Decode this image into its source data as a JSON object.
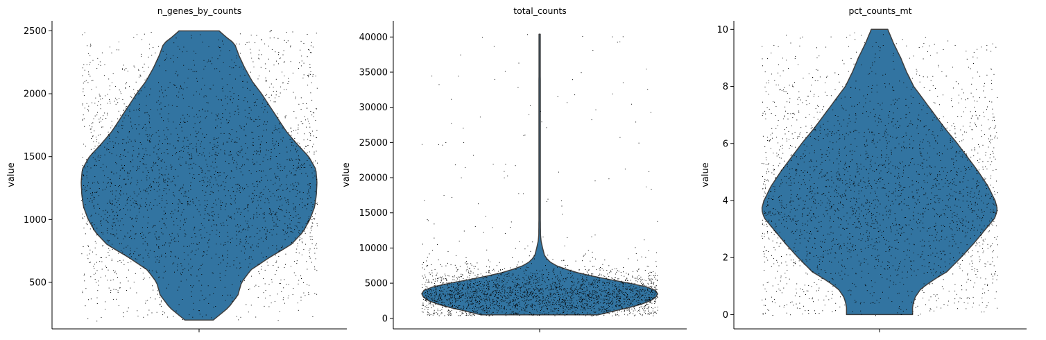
{
  "colors": {
    "violin_fill": "#3274a1",
    "violin_edge": "#3f3f3f",
    "points": "#000000"
  },
  "chart_data": [
    {
      "type": "violin",
      "title": "n_genes_by_counts",
      "xlabel": "",
      "ylabel": "value",
      "ylim": [
        130,
        2580
      ],
      "yticks": [
        500,
        1000,
        1500,
        2000,
        2500
      ],
      "data_range": [
        200,
        2500
      ],
      "density_profile": [
        [
          200,
          0.12
        ],
        [
          300,
          0.25
        ],
        [
          400,
          0.33
        ],
        [
          500,
          0.36
        ],
        [
          600,
          0.44
        ],
        [
          700,
          0.6
        ],
        [
          800,
          0.78
        ],
        [
          900,
          0.88
        ],
        [
          1000,
          0.94
        ],
        [
          1100,
          0.98
        ],
        [
          1200,
          0.995
        ],
        [
          1300,
          1.0
        ],
        [
          1400,
          0.99
        ],
        [
          1500,
          0.93
        ],
        [
          1600,
          0.83
        ],
        [
          1700,
          0.74
        ],
        [
          1800,
          0.67
        ],
        [
          1900,
          0.6
        ],
        [
          2000,
          0.53
        ],
        [
          2100,
          0.45
        ],
        [
          2200,
          0.39
        ],
        [
          2300,
          0.34
        ],
        [
          2400,
          0.3
        ],
        [
          2450,
          0.23
        ],
        [
          2500,
          0.17
        ]
      ],
      "n_points": 2700
    },
    {
      "type": "violin",
      "title": "total_counts",
      "xlabel": "",
      "ylabel": "value",
      "ylim": [
        -1500,
        42300
      ],
      "yticks": [
        0,
        5000,
        10000,
        15000,
        20000,
        25000,
        30000,
        35000,
        40000
      ],
      "data_range": [
        500,
        40400
      ],
      "density_profile": [
        [
          500,
          0.5
        ],
        [
          1000,
          0.62
        ],
        [
          1500,
          0.75
        ],
        [
          2000,
          0.86
        ],
        [
          2500,
          0.94
        ],
        [
          3000,
          0.985
        ],
        [
          3500,
          1.0
        ],
        [
          4000,
          0.98
        ],
        [
          4500,
          0.9
        ],
        [
          5000,
          0.76
        ],
        [
          5500,
          0.6
        ],
        [
          6000,
          0.45
        ],
        [
          6500,
          0.32
        ],
        [
          7000,
          0.22
        ],
        [
          7500,
          0.14
        ],
        [
          8000,
          0.09
        ],
        [
          8500,
          0.06
        ],
        [
          9000,
          0.04
        ],
        [
          10000,
          0.025
        ],
        [
          11000,
          0.012
        ],
        [
          12000,
          0.007
        ],
        [
          14000,
          0.006
        ],
        [
          20000,
          0.006
        ],
        [
          30000,
          0.006
        ],
        [
          40400,
          0.005
        ]
      ],
      "n_points": 2700
    },
    {
      "type": "violin",
      "title": "pct_counts_mt",
      "xlabel": "",
      "ylabel": "value",
      "ylim": [
        -0.5,
        10.3
      ],
      "yticks": [
        0,
        2,
        4,
        6,
        8,
        10
      ],
      "data_range": [
        0,
        10
      ],
      "density_profile": [
        [
          0.0,
          0.28
        ],
        [
          0.3,
          0.28
        ],
        [
          0.6,
          0.3
        ],
        [
          0.9,
          0.35
        ],
        [
          1.2,
          0.45
        ],
        [
          1.5,
          0.57
        ],
        [
          2.0,
          0.69
        ],
        [
          2.5,
          0.8
        ],
        [
          3.0,
          0.9
        ],
        [
          3.4,
          0.98
        ],
        [
          3.7,
          1.0
        ],
        [
          4.0,
          0.98
        ],
        [
          4.5,
          0.92
        ],
        [
          5.0,
          0.84
        ],
        [
          5.5,
          0.75
        ],
        [
          6.0,
          0.66
        ],
        [
          6.5,
          0.56
        ],
        [
          7.0,
          0.47
        ],
        [
          7.5,
          0.38
        ],
        [
          8.0,
          0.29
        ],
        [
          8.5,
          0.23
        ],
        [
          9.0,
          0.18
        ],
        [
          9.5,
          0.12
        ],
        [
          10.0,
          0.07
        ]
      ],
      "n_points": 2700
    }
  ]
}
